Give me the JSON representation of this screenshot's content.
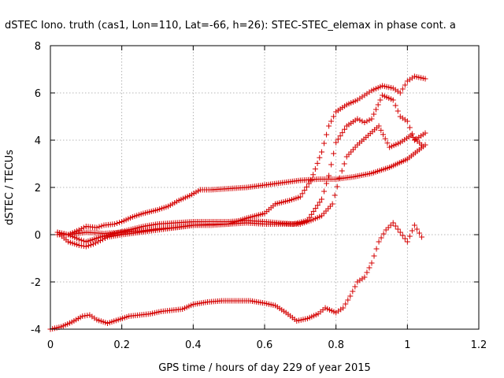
{
  "chart_data": {
    "type": "scatter",
    "title": "dSTEC Iono. truth (cas1, Lon=110, Lat=-66, h=26): STEC-STEC_elemax in phase cont. a",
    "xlabel": "GPS time / hours of day 229 of year 2015",
    "ylabel": "dSTEC  / TECUs",
    "xlim": [
      0,
      1.2
    ],
    "ylim": [
      -4,
      8
    ],
    "xticks": [
      0,
      0.2,
      0.4,
      0.6,
      0.8,
      1,
      1.2
    ],
    "xtick_labels": [
      "0",
      "0.2",
      "0.4",
      "0.6",
      "0.8",
      "1",
      "1.2"
    ],
    "yticks": [
      -4,
      -2,
      0,
      2,
      4,
      6,
      8
    ],
    "ytick_labels": [
      "-4",
      "-2",
      "0",
      "2",
      "4",
      "6",
      "8"
    ],
    "grid": true,
    "marker": "plus",
    "color": "#d40000",
    "series": [
      {
        "points": [
          [
            0.02,
            0.1
          ],
          [
            0.05,
            0.0
          ],
          [
            0.08,
            0.2
          ],
          [
            0.1,
            0.35
          ],
          [
            0.13,
            0.3
          ],
          [
            0.15,
            0.4
          ],
          [
            0.18,
            0.45
          ],
          [
            0.2,
            0.55
          ],
          [
            0.23,
            0.75
          ],
          [
            0.26,
            0.9
          ],
          [
            0.3,
            1.05
          ],
          [
            0.33,
            1.2
          ],
          [
            0.36,
            1.45
          ],
          [
            0.39,
            1.65
          ],
          [
            0.42,
            1.9
          ],
          [
            0.45,
            1.9
          ],
          [
            0.5,
            1.95
          ],
          [
            0.55,
            2.0
          ],
          [
            0.6,
            2.1
          ],
          [
            0.65,
            2.2
          ],
          [
            0.7,
            2.3
          ],
          [
            0.75,
            2.35
          ],
          [
            0.8,
            2.35
          ],
          [
            0.85,
            2.45
          ],
          [
            0.9,
            2.6
          ],
          [
            0.95,
            2.85
          ],
          [
            1.0,
            3.2
          ],
          [
            1.05,
            3.8
          ]
        ]
      },
      {
        "points": [
          [
            0.02,
            0.1
          ],
          [
            0.05,
            -0.3
          ],
          [
            0.08,
            -0.45
          ],
          [
            0.1,
            -0.5
          ],
          [
            0.12,
            -0.4
          ],
          [
            0.14,
            -0.25
          ],
          [
            0.16,
            -0.1
          ],
          [
            0.2,
            0.0
          ],
          [
            0.25,
            0.1
          ],
          [
            0.3,
            0.2
          ],
          [
            0.35,
            0.3
          ],
          [
            0.4,
            0.4
          ],
          [
            0.45,
            0.4
          ],
          [
            0.5,
            0.45
          ],
          [
            0.55,
            0.7
          ],
          [
            0.6,
            0.9
          ],
          [
            0.63,
            1.3
          ],
          [
            0.67,
            1.45
          ],
          [
            0.7,
            1.6
          ],
          [
            0.73,
            2.3
          ],
          [
            0.76,
            3.5
          ],
          [
            0.78,
            4.6
          ],
          [
            0.8,
            5.2
          ],
          [
            0.83,
            5.5
          ],
          [
            0.86,
            5.7
          ],
          [
            0.88,
            5.9
          ],
          [
            0.9,
            6.1
          ],
          [
            0.93,
            6.3
          ],
          [
            0.96,
            6.2
          ],
          [
            0.98,
            6.0
          ],
          [
            1.0,
            6.5
          ],
          [
            1.02,
            6.7
          ],
          [
            1.05,
            6.6
          ]
        ]
      },
      {
        "points": [
          [
            0.02,
            0.1
          ],
          [
            0.05,
            0.0
          ],
          [
            0.08,
            -0.2
          ],
          [
            0.1,
            -0.3
          ],
          [
            0.14,
            -0.1
          ],
          [
            0.18,
            0.05
          ],
          [
            0.22,
            0.2
          ],
          [
            0.26,
            0.35
          ],
          [
            0.3,
            0.45
          ],
          [
            0.35,
            0.5
          ],
          [
            0.4,
            0.55
          ],
          [
            0.45,
            0.55
          ],
          [
            0.5,
            0.55
          ],
          [
            0.55,
            0.6
          ],
          [
            0.6,
            0.55
          ],
          [
            0.64,
            0.5
          ],
          [
            0.68,
            0.45
          ],
          [
            0.72,
            0.6
          ],
          [
            0.76,
            1.5
          ],
          [
            0.78,
            2.5
          ],
          [
            0.8,
            3.9
          ],
          [
            0.83,
            4.6
          ],
          [
            0.86,
            4.9
          ],
          [
            0.88,
            4.75
          ],
          [
            0.9,
            4.9
          ],
          [
            0.93,
            5.9
          ],
          [
            0.96,
            5.7
          ],
          [
            0.98,
            5.0
          ],
          [
            1.0,
            4.8
          ],
          [
            1.02,
            4.0
          ],
          [
            1.05,
            4.3
          ]
        ]
      },
      {
        "points": [
          [
            0.02,
            0.0
          ],
          [
            0.05,
            0.0
          ],
          [
            0.1,
            0.1
          ],
          [
            0.15,
            0.05
          ],
          [
            0.2,
            0.1
          ],
          [
            0.25,
            0.15
          ],
          [
            0.3,
            0.25
          ],
          [
            0.35,
            0.3
          ],
          [
            0.4,
            0.4
          ],
          [
            0.45,
            0.45
          ],
          [
            0.5,
            0.45
          ],
          [
            0.55,
            0.5
          ],
          [
            0.6,
            0.45
          ],
          [
            0.65,
            0.45
          ],
          [
            0.7,
            0.45
          ],
          [
            0.73,
            0.6
          ],
          [
            0.76,
            0.8
          ],
          [
            0.79,
            1.3
          ],
          [
            0.81,
            2.4
          ],
          [
            0.83,
            3.3
          ],
          [
            0.86,
            3.8
          ],
          [
            0.89,
            4.2
          ],
          [
            0.92,
            4.6
          ],
          [
            0.95,
            3.7
          ],
          [
            0.98,
            3.9
          ],
          [
            1.01,
            4.2
          ],
          [
            1.04,
            3.8
          ]
        ]
      },
      {
        "points": [
          [
            0.0,
            -4.0
          ],
          [
            0.03,
            -3.9
          ],
          [
            0.06,
            -3.7
          ],
          [
            0.09,
            -3.45
          ],
          [
            0.11,
            -3.4
          ],
          [
            0.13,
            -3.6
          ],
          [
            0.16,
            -3.75
          ],
          [
            0.19,
            -3.6
          ],
          [
            0.22,
            -3.45
          ],
          [
            0.25,
            -3.4
          ],
          [
            0.28,
            -3.35
          ],
          [
            0.31,
            -3.25
          ],
          [
            0.34,
            -3.2
          ],
          [
            0.37,
            -3.15
          ],
          [
            0.4,
            -2.95
          ],
          [
            0.44,
            -2.85
          ],
          [
            0.48,
            -2.8
          ],
          [
            0.52,
            -2.8
          ],
          [
            0.56,
            -2.8
          ],
          [
            0.6,
            -2.9
          ],
          [
            0.63,
            -3.0
          ],
          [
            0.66,
            -3.3
          ],
          [
            0.69,
            -3.65
          ],
          [
            0.72,
            -3.55
          ],
          [
            0.75,
            -3.35
          ],
          [
            0.77,
            -3.1
          ],
          [
            0.8,
            -3.3
          ],
          [
            0.82,
            -3.1
          ],
          [
            0.84,
            -2.6
          ],
          [
            0.86,
            -2.0
          ],
          [
            0.88,
            -1.8
          ],
          [
            0.9,
            -1.2
          ],
          [
            0.92,
            -0.3
          ],
          [
            0.94,
            0.2
          ],
          [
            0.96,
            0.5
          ],
          [
            0.98,
            0.1
          ],
          [
            1.0,
            -0.3
          ],
          [
            1.02,
            0.4
          ],
          [
            1.04,
            -0.1
          ]
        ]
      }
    ]
  }
}
